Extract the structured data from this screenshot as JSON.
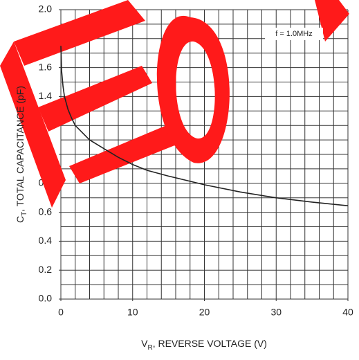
{
  "chart_data": {
    "type": "line",
    "x_label": {
      "main": "V",
      "sub": "R",
      "rest": ", REVERSE VOLTAGE (V)"
    },
    "y_label": {
      "main": "C",
      "sub": "T",
      "rest": ", TOTAL CAPACITANCE (pF)"
    },
    "annotation": "f = 1.0MHz",
    "x": [
      0,
      0.1,
      0.3,
      0.5,
      1,
      1.5,
      2,
      3,
      4,
      6,
      8,
      10,
      12,
      15,
      20,
      25,
      30,
      35,
      40
    ],
    "series": [
      {
        "name": "CT",
        "color": "#222222",
        "values": [
          1.75,
          1.58,
          1.47,
          1.4,
          1.31,
          1.25,
          1.2,
          1.15,
          1.1,
          1.04,
          0.98,
          0.93,
          0.89,
          0.85,
          0.79,
          0.74,
          0.7,
          0.67,
          0.645
        ]
      }
    ],
    "xlim": [
      0,
      40
    ],
    "ylim": [
      0,
      2.0
    ],
    "xticks": [
      0,
      10,
      20,
      30,
      40
    ],
    "yticks": [
      {
        "value": 0,
        "label": "0.0"
      },
      0.2,
      0.4,
      0.6,
      0.8,
      {
        "value": 1,
        "label": "1.0"
      },
      1.2,
      1.4,
      1.6,
      1.8,
      {
        "value": 2,
        "label": "2.0"
      }
    ],
    "xgrid": [
      0,
      2,
      4,
      6,
      8,
      10,
      12,
      14,
      16,
      18,
      20,
      22,
      24,
      26,
      28,
      30,
      32,
      34,
      36,
      38,
      40
    ],
    "ygrid": [
      0,
      0.1,
      0.2,
      0.3,
      0.4,
      0.5,
      0.6,
      0.7,
      0.8,
      0.9,
      1,
      1.1,
      1.2,
      1.3,
      1.4,
      1.5,
      1.6,
      1.7,
      1.8,
      1.9,
      2
    ],
    "grid": true
  }
}
